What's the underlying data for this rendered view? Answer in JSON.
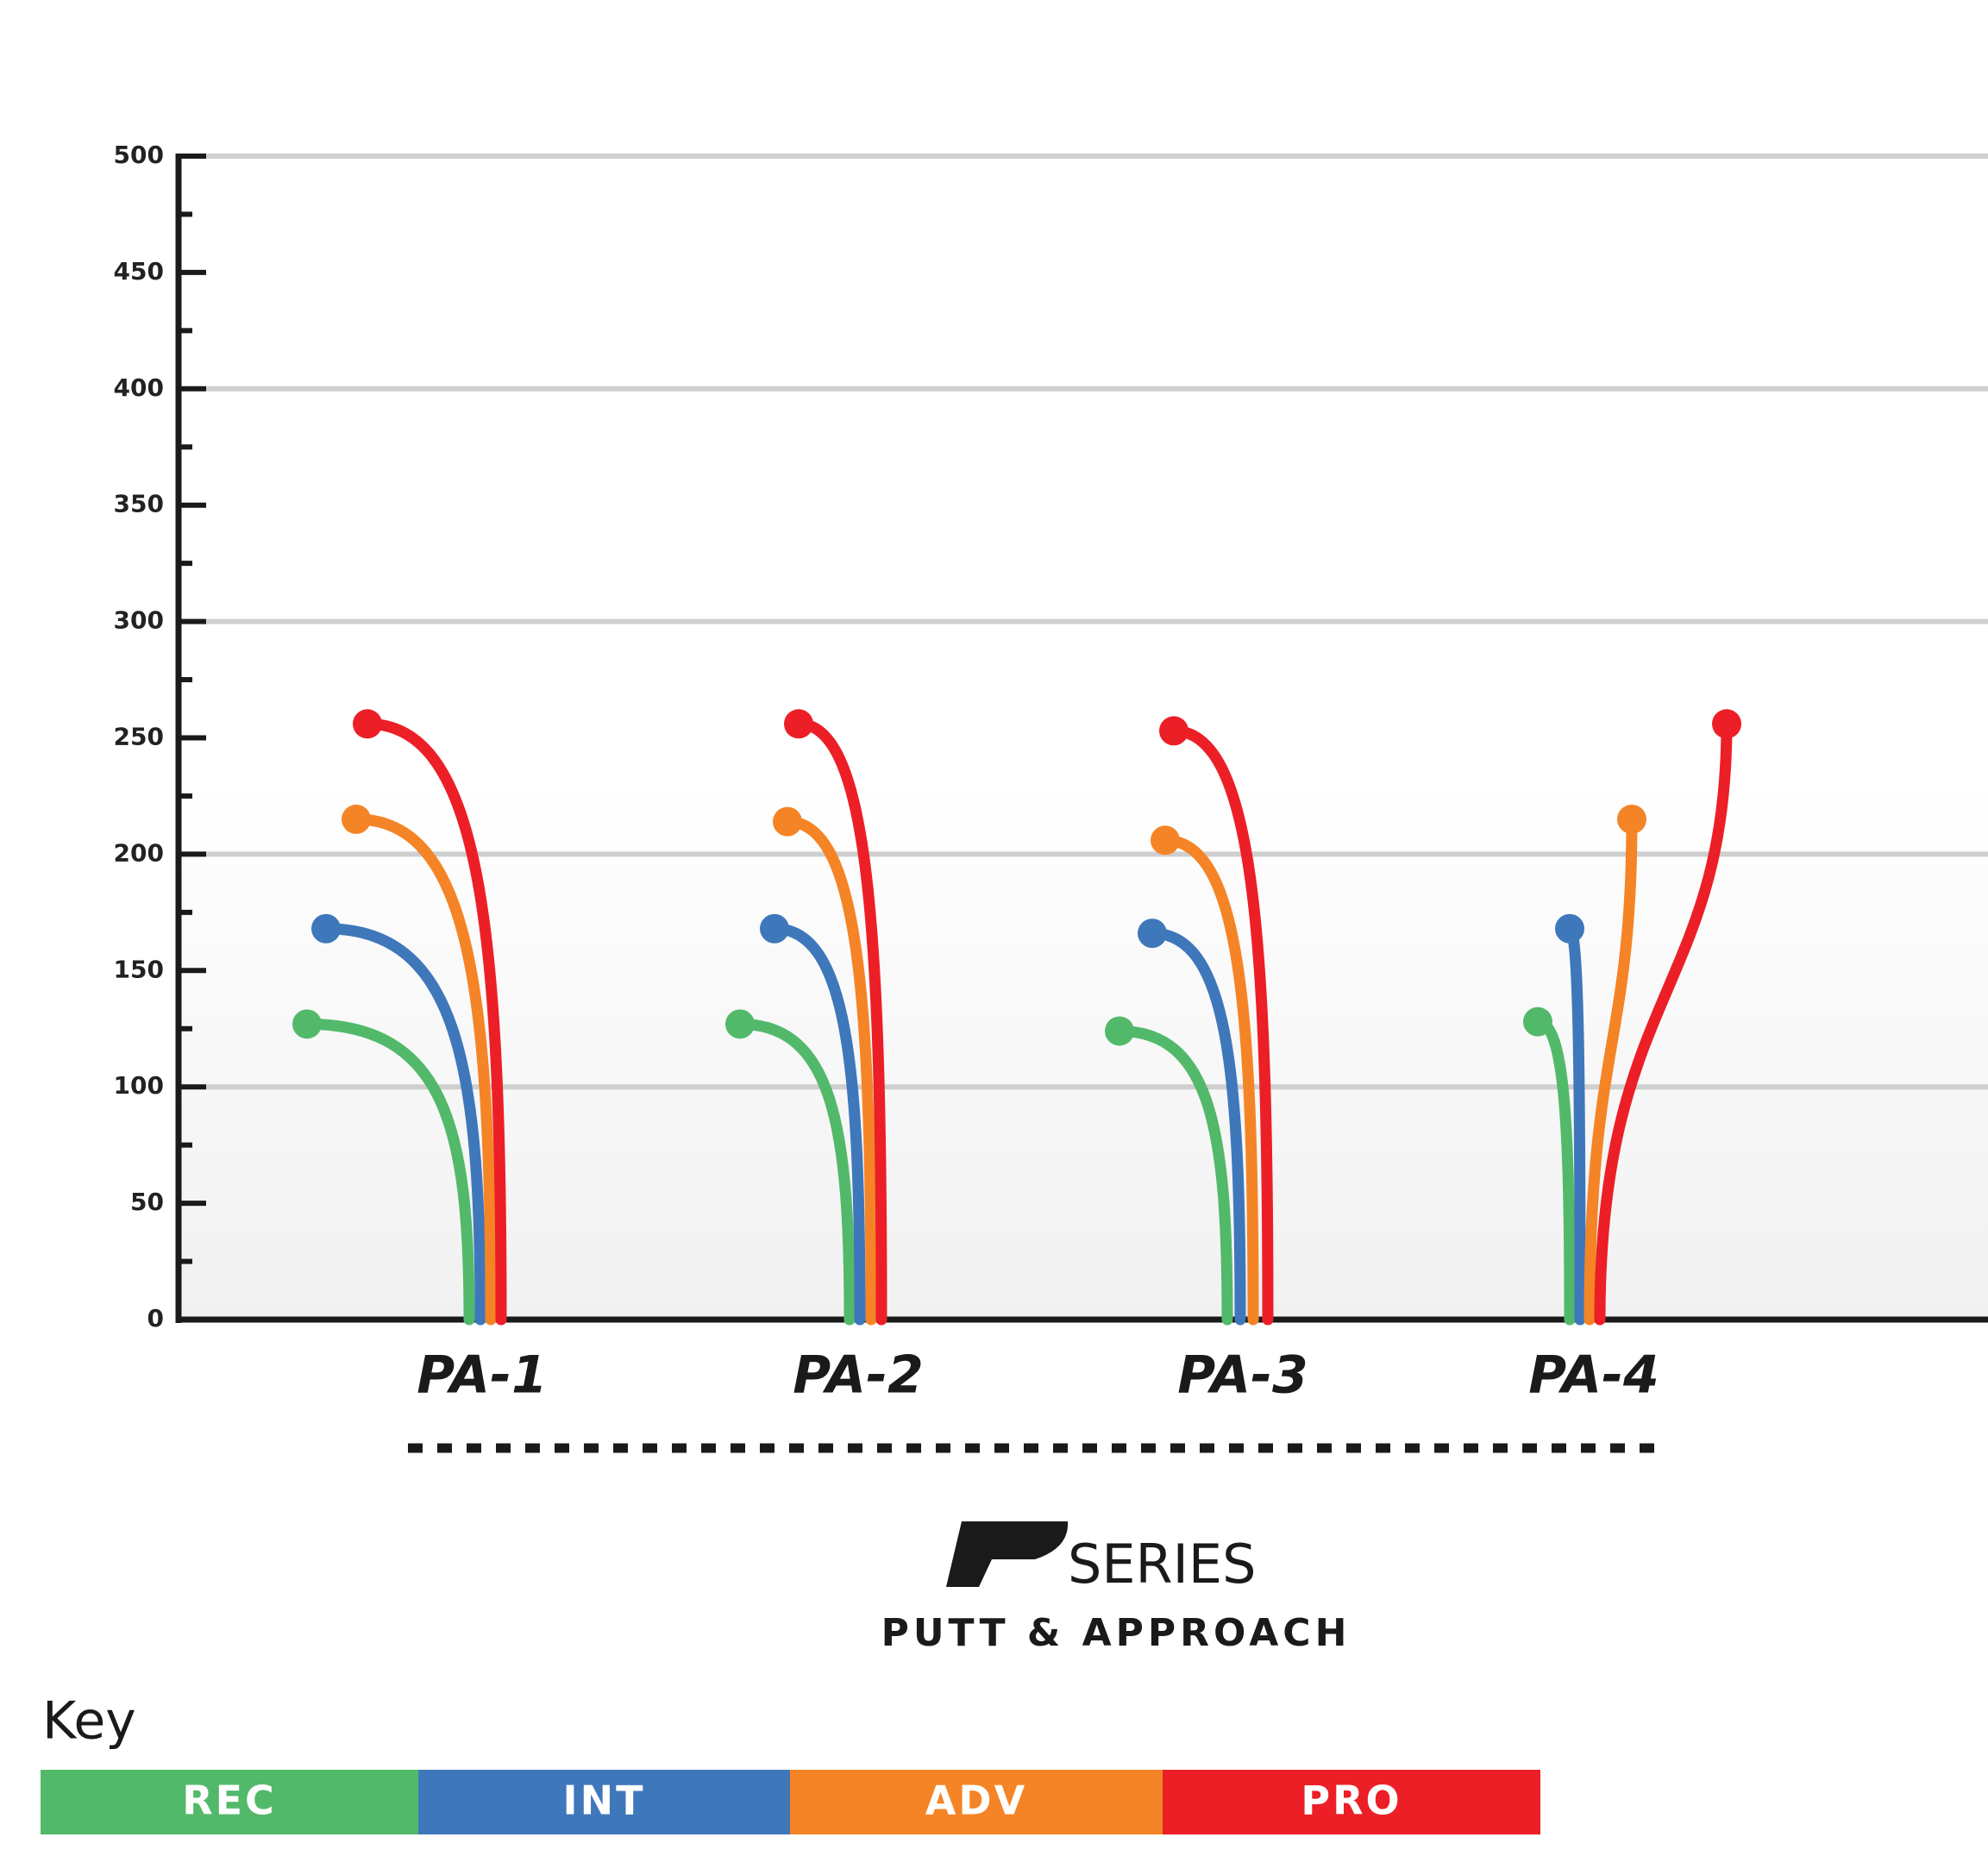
{
  "chart_data": {
    "type": "flight",
    "title": "SERIES",
    "subtitle": "PUTT & APPROACH",
    "legend_title": "Key",
    "categories": [
      "PA-1",
      "PA-2",
      "PA-3",
      "PA-4"
    ],
    "category_colors": [
      "#1a1a1a",
      "#1a1a1a",
      "#7dc242",
      "#1a1a1a"
    ],
    "series": [
      {
        "name": "REC",
        "color": "#52b96a",
        "values": [
          127,
          127,
          124,
          128
        ]
      },
      {
        "name": "INT",
        "color": "#3f77bb",
        "values": [
          168,
          168,
          166,
          168
        ]
      },
      {
        "name": "ADV",
        "color": "#f58426",
        "values": [
          215,
          214,
          206,
          215
        ]
      },
      {
        "name": "PRO",
        "color": "#ec1f27",
        "values": [
          256,
          256,
          253,
          256
        ]
      }
    ],
    "ylim": [
      0,
      500
    ],
    "yticks": [
      0,
      50,
      100,
      150,
      200,
      250,
      300,
      350,
      400,
      450,
      500
    ],
    "grid": true
  }
}
